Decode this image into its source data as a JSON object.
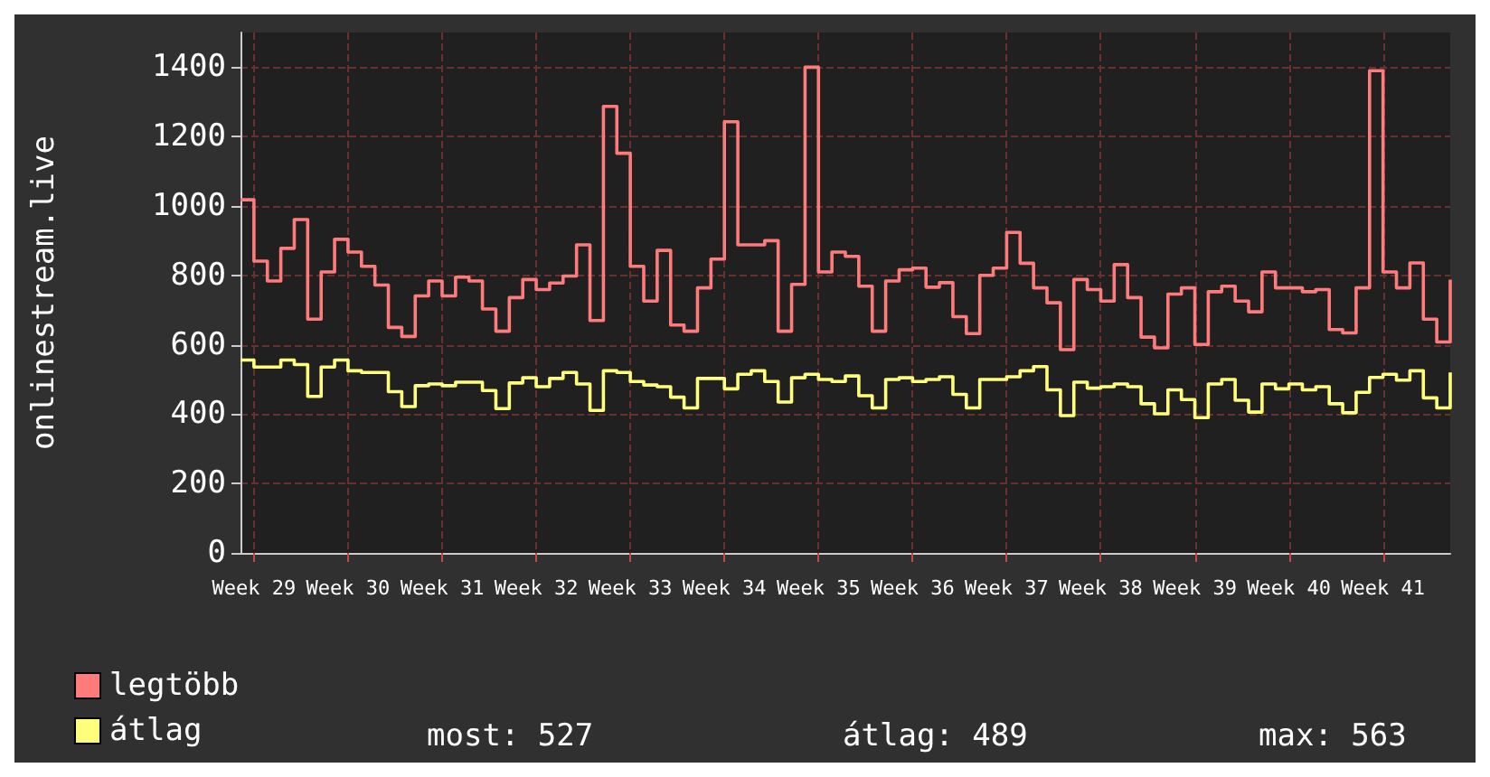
{
  "chart_data": {
    "type": "step",
    "ylabel": "onlinestream.live",
    "categories": [
      null,
      "Week 29",
      null,
      null,
      null,
      null,
      null,
      null,
      "Week 30",
      null,
      null,
      null,
      null,
      null,
      null,
      "Week 31",
      null,
      null,
      null,
      null,
      null,
      null,
      "Week 32",
      null,
      null,
      null,
      null,
      null,
      null,
      "Week 33",
      null,
      null,
      null,
      null,
      null,
      null,
      "Week 34",
      null,
      null,
      null,
      null,
      null,
      null,
      "Week 35",
      null,
      null,
      null,
      null,
      null,
      null,
      "Week 36",
      null,
      null,
      null,
      null,
      null,
      null,
      "Week 37",
      null,
      null,
      null,
      null,
      null,
      null,
      "Week 38",
      null,
      null,
      null,
      null,
      null,
      null,
      "Week 39",
      null,
      null,
      null,
      null,
      null,
      null,
      "Week 40",
      null,
      null,
      null,
      null,
      null,
      null,
      "Week 41",
      null,
      null,
      null,
      null,
      null
    ],
    "ylim": [
      0,
      1500
    ],
    "yticks": [
      0,
      200,
      400,
      600,
      800,
      1000,
      1200,
      1400
    ],
    "series": [
      {
        "name": "legtöbb",
        "color": "#ff7b7b",
        "values": [
          1018,
          841,
          784,
          878,
          961,
          674,
          810,
          904,
          867,
          826,
          772,
          650,
          624,
          741,
          784,
          741,
          795,
          784,
          703,
          639,
          736,
          788,
          759,
          778,
          798,
          888,
          670,
          1287,
          1152,
          826,
          726,
          872,
          657,
          639,
          764,
          847,
          1243,
          888,
          888,
          900,
          639,
          774,
          1400,
          810,
          867,
          855,
          769,
          639,
          784,
          816,
          821,
          766,
          779,
          681,
          632,
          800,
          821,
          924,
          835,
          764,
          721,
          586,
          788,
          759,
          726,
          831,
          736,
          622,
          591,
          746,
          764,
          601,
          753,
          769,
          726,
          695,
          810,
          764,
          764,
          753,
          759,
          644,
          634,
          764,
          1390,
          810,
          764,
          836,
          674,
          608,
          788
        ]
      },
      {
        "name": "átlag",
        "color": "#ffff7b",
        "values": [
          556,
          536,
          536,
          556,
          543,
          451,
          536,
          556,
          525,
          520,
          520,
          465,
          422,
          482,
          487,
          482,
          492,
          492,
          468,
          416,
          490,
          505,
          479,
          503,
          520,
          487,
          411,
          525,
          520,
          494,
          484,
          479,
          449,
          418,
          503,
          503,
          473,
          515,
          525,
          494,
          435,
          505,
          515,
          500,
          494,
          510,
          453,
          418,
          500,
          505,
          494,
          500,
          508,
          457,
          418,
          500,
          500,
          508,
          525,
          537,
          470,
          396,
          492,
          475,
          479,
          487,
          479,
          430,
          401,
          470,
          442,
          390,
          487,
          500,
          440,
          406,
          487,
          473,
          487,
          470,
          479,
          430,
          404,
          463,
          506,
          515,
          498,
          525,
          447,
          418,
          520
        ]
      }
    ],
    "annotations": [
      "most: 527",
      "átlag: 489",
      "max: 563"
    ],
    "legend": "bottom left",
    "grid": true,
    "marker": "none",
    "line_style": "solid"
  }
}
